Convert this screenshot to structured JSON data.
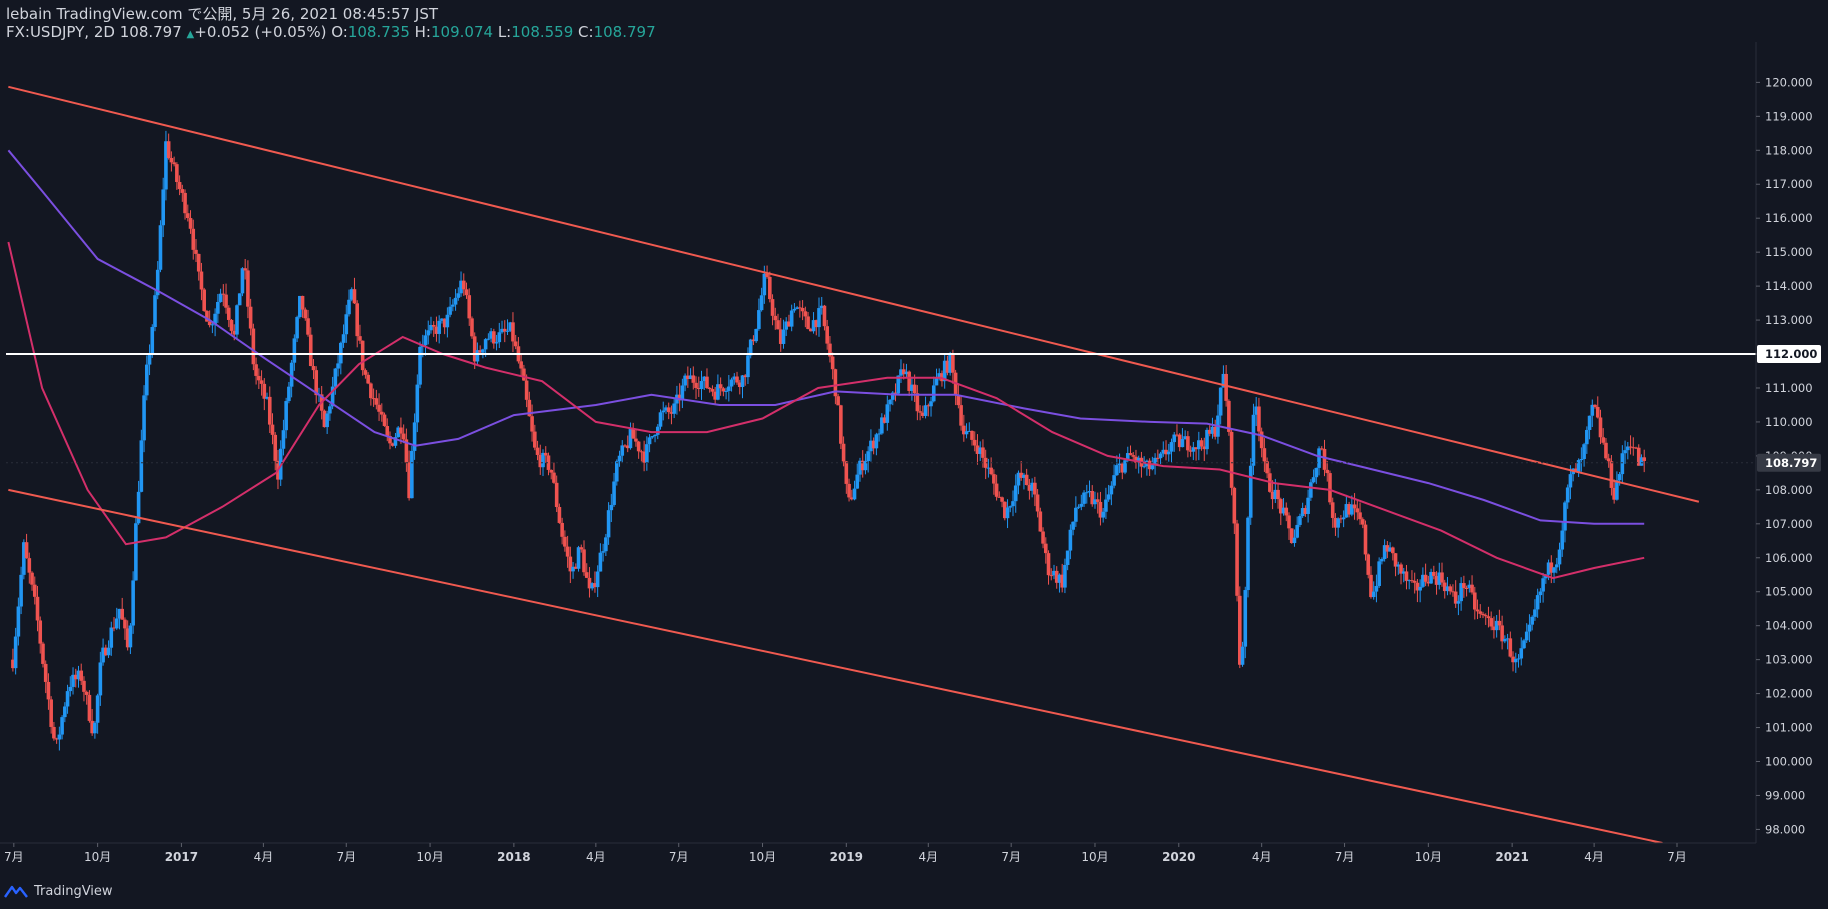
{
  "header": {
    "publish_line": "lebain TradingView.com で公開, 5月 26, 2021 08:45:57 JST",
    "symbol": "FX:USDJPY, 2D",
    "last": "108.797",
    "change_arrow": "▲",
    "change": "+0.052 (+0.05%)",
    "o_label": "O:",
    "o_value": "108.735",
    "h_label": "H:",
    "h_value": "109.074",
    "l_label": "L:",
    "l_value": "108.559",
    "c_label": "C:",
    "c_value": "108.797"
  },
  "footer": {
    "brand": "TradingView"
  },
  "colors": {
    "background": "#131722",
    "up_candle": "#2196f3",
    "down_candle": "#ef5350",
    "trendline": "#f05a50",
    "level_line": "#ffffff",
    "ma_purple": "#7b4fe0",
    "ma_red": "#d32f6a",
    "axis_text": "#d1d4dc",
    "price_badge": "#363a45"
  },
  "chart_data": {
    "type": "candlestick",
    "symbol": "FX:USDJPY",
    "interval": "2D",
    "y_range": [
      97.6,
      120.6
    ],
    "y_ticks": [
      "120.000",
      "119.000",
      "118.000",
      "117.000",
      "116.000",
      "115.000",
      "114.000",
      "113.000",
      "112.000",
      "111.000",
      "110.000",
      "109.000",
      "108.000",
      "107.000",
      "106.000",
      "105.000",
      "104.000",
      "103.000",
      "102.000",
      "101.000",
      "100.000",
      "99.000",
      "98.000"
    ],
    "x_ticks": [
      {
        "label": "7月",
        "date": "2016-07"
      },
      {
        "label": "10月",
        "date": "2016-10"
      },
      {
        "label": "2017",
        "date": "2017-01"
      },
      {
        "label": "4月",
        "date": "2017-04"
      },
      {
        "label": "7月",
        "date": "2017-07"
      },
      {
        "label": "10月",
        "date": "2017-10"
      },
      {
        "label": "2018",
        "date": "2018-01"
      },
      {
        "label": "4月",
        "date": "2018-04"
      },
      {
        "label": "7月",
        "date": "2018-07"
      },
      {
        "label": "10月",
        "date": "2018-10"
      },
      {
        "label": "2019",
        "date": "2019-01"
      },
      {
        "label": "4月",
        "date": "2019-04"
      },
      {
        "label": "7月",
        "date": "2019-07"
      },
      {
        "label": "10月",
        "date": "2019-10"
      },
      {
        "label": "2020",
        "date": "2020-01"
      },
      {
        "label": "4月",
        "date": "2020-04"
      },
      {
        "label": "7月",
        "date": "2020-07"
      },
      {
        "label": "10月",
        "date": "2020-10"
      },
      {
        "label": "2021",
        "date": "2021-01"
      },
      {
        "label": "4月",
        "date": "2021-04"
      },
      {
        "label": "7月",
        "date": "2021-07"
      }
    ],
    "price_path": [
      [
        "2016-06-30",
        103.0
      ],
      [
        "2016-07-12",
        106.3
      ],
      [
        "2016-07-25",
        104.5
      ],
      [
        "2016-08-08",
        101.8
      ],
      [
        "2016-08-16",
        100.3
      ],
      [
        "2016-08-30",
        102.3
      ],
      [
        "2016-09-13",
        102.5
      ],
      [
        "2016-09-27",
        100.8
      ],
      [
        "2016-10-05",
        103.0
      ],
      [
        "2016-10-25",
        104.5
      ],
      [
        "2016-11-04",
        103.2
      ],
      [
        "2016-11-11",
        106.5
      ],
      [
        "2016-11-22",
        111.0
      ],
      [
        "2016-12-05",
        114.0
      ],
      [
        "2016-12-15",
        118.2
      ],
      [
        "2016-12-28",
        117.0
      ],
      [
        "2017-01-10",
        116.0
      ],
      [
        "2017-01-20",
        114.2
      ],
      [
        "2017-02-01",
        112.8
      ],
      [
        "2017-02-15",
        114.0
      ],
      [
        "2017-02-28",
        112.5
      ],
      [
        "2017-03-10",
        114.8
      ],
      [
        "2017-03-22",
        111.5
      ],
      [
        "2017-04-05",
        110.5
      ],
      [
        "2017-04-17",
        108.5
      ],
      [
        "2017-05-01",
        111.5
      ],
      [
        "2017-05-12",
        113.7
      ],
      [
        "2017-05-25",
        111.5
      ],
      [
        "2017-06-07",
        109.8
      ],
      [
        "2017-06-20",
        111.5
      ],
      [
        "2017-07-07",
        113.8
      ],
      [
        "2017-07-20",
        111.5
      ],
      [
        "2017-08-03",
        110.5
      ],
      [
        "2017-08-17",
        109.3
      ],
      [
        "2017-09-01",
        110.0
      ],
      [
        "2017-09-08",
        108.0
      ],
      [
        "2017-09-20",
        112.3
      ],
      [
        "2017-10-05",
        112.7
      ],
      [
        "2017-10-20",
        113.0
      ],
      [
        "2017-11-06",
        114.2
      ],
      [
        "2017-11-20",
        111.8
      ],
      [
        "2017-12-01",
        112.5
      ],
      [
        "2017-12-15",
        112.5
      ],
      [
        "2017-12-29",
        112.7
      ],
      [
        "2018-01-10",
        111.3
      ],
      [
        "2018-01-25",
        109.0
      ],
      [
        "2018-02-10",
        108.7
      ],
      [
        "2018-02-22",
        106.8
      ],
      [
        "2018-03-05",
        105.5
      ],
      [
        "2018-03-15",
        106.3
      ],
      [
        "2018-03-26",
        104.8
      ],
      [
        "2018-04-10",
        106.5
      ],
      [
        "2018-04-25",
        108.8
      ],
      [
        "2018-05-10",
        109.6
      ],
      [
        "2018-05-25",
        109.0
      ],
      [
        "2018-06-10",
        110.2
      ],
      [
        "2018-06-25",
        110.3
      ],
      [
        "2018-07-10",
        111.3
      ],
      [
        "2018-07-25",
        111.2
      ],
      [
        "2018-08-10",
        110.9
      ],
      [
        "2018-08-25",
        111.2
      ],
      [
        "2018-09-10",
        111.3
      ],
      [
        "2018-09-25",
        113.0
      ],
      [
        "2018-10-04",
        114.3
      ],
      [
        "2018-10-20",
        112.3
      ],
      [
        "2018-11-05",
        113.5
      ],
      [
        "2018-11-20",
        112.8
      ],
      [
        "2018-12-05",
        113.2
      ],
      [
        "2018-12-20",
        111.0
      ],
      [
        "2019-01-03",
        107.5
      ],
      [
        "2019-01-15",
        108.6
      ],
      [
        "2019-02-01",
        109.5
      ],
      [
        "2019-02-20",
        110.6
      ],
      [
        "2019-03-05",
        111.6
      ],
      [
        "2019-03-25",
        110.0
      ],
      [
        "2019-04-10",
        111.2
      ],
      [
        "2019-04-25",
        111.8
      ],
      [
        "2019-05-10",
        109.7
      ],
      [
        "2019-05-25",
        109.3
      ],
      [
        "2019-06-10",
        108.3
      ],
      [
        "2019-06-25",
        107.3
      ],
      [
        "2019-07-10",
        108.4
      ],
      [
        "2019-07-25",
        108.0
      ],
      [
        "2019-08-10",
        105.7
      ],
      [
        "2019-08-26",
        105.3
      ],
      [
        "2019-09-10",
        107.5
      ],
      [
        "2019-09-25",
        107.8
      ],
      [
        "2019-10-10",
        107.3
      ],
      [
        "2019-10-25",
        108.6
      ],
      [
        "2019-11-10",
        109.0
      ],
      [
        "2019-11-25",
        108.6
      ],
      [
        "2019-12-10",
        108.8
      ],
      [
        "2019-12-25",
        109.4
      ],
      [
        "2020-01-10",
        109.4
      ],
      [
        "2020-01-25",
        109.3
      ],
      [
        "2020-02-10",
        109.8
      ],
      [
        "2020-02-20",
        111.5
      ],
      [
        "2020-03-01",
        107.5
      ],
      [
        "2020-03-09",
        102.3
      ],
      [
        "2020-03-24",
        111.0
      ],
      [
        "2020-04-05",
        108.4
      ],
      [
        "2020-04-20",
        107.6
      ],
      [
        "2020-05-05",
        106.5
      ],
      [
        "2020-05-20",
        107.6
      ],
      [
        "2020-06-05",
        109.4
      ],
      [
        "2020-06-20",
        107.0
      ],
      [
        "2020-07-05",
        107.5
      ],
      [
        "2020-07-20",
        107.0
      ],
      [
        "2020-07-31",
        104.8
      ],
      [
        "2020-08-15",
        106.4
      ],
      [
        "2020-08-31",
        105.6
      ],
      [
        "2020-09-15",
        105.0
      ],
      [
        "2020-09-30",
        105.5
      ],
      [
        "2020-10-15",
        105.4
      ],
      [
        "2020-10-31",
        104.7
      ],
      [
        "2020-11-10",
        105.3
      ],
      [
        "2020-11-25",
        104.3
      ],
      [
        "2020-12-10",
        104.1
      ],
      [
        "2020-12-25",
        103.6
      ],
      [
        "2021-01-06",
        102.8
      ],
      [
        "2021-01-20",
        103.8
      ],
      [
        "2021-02-05",
        105.4
      ],
      [
        "2021-02-20",
        106.1
      ],
      [
        "2021-03-05",
        108.3
      ],
      [
        "2021-03-18",
        108.8
      ],
      [
        "2021-03-31",
        110.5
      ],
      [
        "2021-04-12",
        109.2
      ],
      [
        "2021-04-23",
        107.9
      ],
      [
        "2021-05-05",
        109.2
      ],
      [
        "2021-05-12",
        109.5
      ],
      [
        "2021-05-20",
        108.8
      ],
      [
        "2021-05-26",
        108.797
      ]
    ],
    "lines": [
      {
        "name": "upper-channel",
        "color": "#f05a50",
        "from": [
          "2016-06-25",
          119.87
        ],
        "to": [
          "2021-07-25",
          107.65
        ]
      },
      {
        "name": "lower-channel",
        "color": "#f05a50",
        "from": [
          "2016-06-25",
          108.0
        ],
        "to": [
          "2021-06-15",
          97.6
        ]
      },
      {
        "name": "level-112",
        "color": "#ffffff",
        "price": 112.0
      }
    ],
    "ma_purple": [
      [
        "2016-06-25",
        118.0
      ],
      [
        "2016-08-01",
        116.8
      ],
      [
        "2016-10-01",
        114.8
      ],
      [
        "2016-12-10",
        113.8
      ],
      [
        "2017-02-01",
        113.0
      ],
      [
        "2017-04-01",
        111.9
      ],
      [
        "2017-06-01",
        110.8
      ],
      [
        "2017-08-01",
        109.7
      ],
      [
        "2017-09-15",
        109.3
      ],
      [
        "2017-11-01",
        109.5
      ],
      [
        "2018-01-01",
        110.2
      ],
      [
        "2018-04-01",
        110.5
      ],
      [
        "2018-06-01",
        110.8
      ],
      [
        "2018-08-15",
        110.5
      ],
      [
        "2018-10-15",
        110.5
      ],
      [
        "2018-12-20",
        110.9
      ],
      [
        "2019-03-01",
        110.8
      ],
      [
        "2019-05-01",
        110.8
      ],
      [
        "2019-07-15",
        110.4
      ],
      [
        "2019-09-15",
        110.1
      ],
      [
        "2019-12-01",
        110.0
      ],
      [
        "2020-02-01",
        109.95
      ],
      [
        "2020-04-01",
        109.6
      ],
      [
        "2020-06-01",
        109.0
      ],
      [
        "2020-08-01",
        108.6
      ],
      [
        "2020-10-01",
        108.2
      ],
      [
        "2020-12-01",
        107.7
      ],
      [
        "2021-02-01",
        107.1
      ],
      [
        "2021-04-01",
        107.0
      ],
      [
        "2021-05-26",
        107.0
      ]
    ],
    "ma_red": [
      [
        "2016-06-25",
        115.3
      ],
      [
        "2016-08-01",
        111.0
      ],
      [
        "2016-09-20",
        108.0
      ],
      [
        "2016-11-01",
        106.4
      ],
      [
        "2016-12-15",
        106.6
      ],
      [
        "2017-02-15",
        107.5
      ],
      [
        "2017-04-15",
        108.5
      ],
      [
        "2017-06-01",
        110.5
      ],
      [
        "2017-07-15",
        111.7
      ],
      [
        "2017-09-01",
        112.5
      ],
      [
        "2017-10-15",
        112.0
      ],
      [
        "2017-12-01",
        111.6
      ],
      [
        "2018-02-01",
        111.2
      ],
      [
        "2018-04-01",
        110.0
      ],
      [
        "2018-06-01",
        109.7
      ],
      [
        "2018-08-01",
        109.7
      ],
      [
        "2018-10-01",
        110.1
      ],
      [
        "2018-12-01",
        111.0
      ],
      [
        "2019-02-15",
        111.3
      ],
      [
        "2019-04-15",
        111.3
      ],
      [
        "2019-06-15",
        110.7
      ],
      [
        "2019-08-15",
        109.7
      ],
      [
        "2019-10-15",
        109.0
      ],
      [
        "2019-12-15",
        108.7
      ],
      [
        "2020-02-15",
        108.6
      ],
      [
        "2020-04-15",
        108.2
      ],
      [
        "2020-06-15",
        108.0
      ],
      [
        "2020-08-15",
        107.4
      ],
      [
        "2020-10-15",
        106.8
      ],
      [
        "2020-12-15",
        106.0
      ],
      [
        "2021-02-15",
        105.4
      ],
      [
        "2021-04-01",
        105.7
      ],
      [
        "2021-05-26",
        106.0
      ]
    ],
    "current_price": {
      "label": "108.797",
      "value": 108.797
    },
    "level_label": {
      "label": "112.000",
      "value": 112.0
    }
  }
}
